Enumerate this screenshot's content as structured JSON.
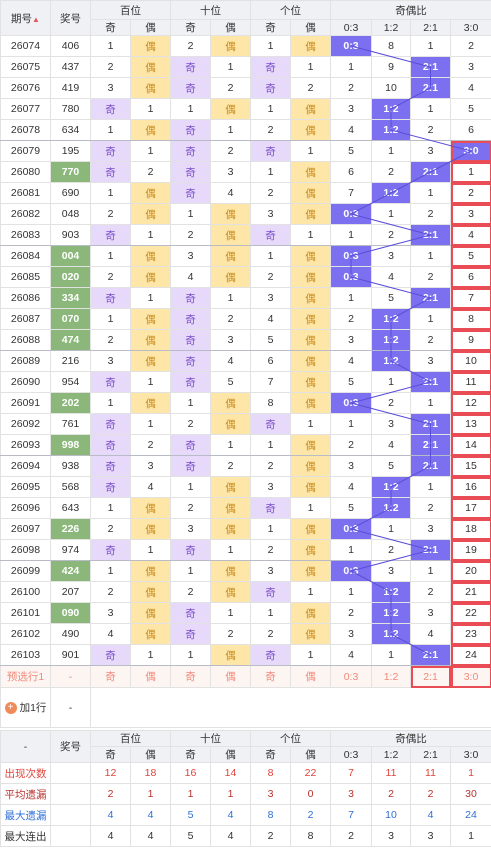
{
  "header": {
    "period": "期号",
    "number": "奖号",
    "groups": [
      "百位",
      "十位",
      "个位",
      "奇偶比"
    ],
    "sub": [
      "奇",
      "偶",
      "奇",
      "偶",
      "奇",
      "偶",
      "0:3",
      "1:2",
      "2:1",
      "3:0"
    ]
  },
  "rows": [
    {
      "period": 26074,
      "number": "406",
      "cells": [
        1,
        "偶",
        2,
        "偶",
        1,
        "偶",
        "0:3",
        8,
        1,
        2
      ]
    },
    {
      "period": 26075,
      "number": "437",
      "cells": [
        2,
        "偶",
        "奇",
        1,
        "奇",
        1,
        1,
        9,
        "2:1",
        3
      ]
    },
    {
      "period": 26076,
      "number": "419",
      "cells": [
        3,
        "偶",
        "奇",
        2,
        "奇",
        2,
        2,
        10,
        "2:1",
        4
      ]
    },
    {
      "period": 26077,
      "number": "780",
      "cells": [
        "奇",
        1,
        1,
        "偶",
        1,
        "偶",
        3,
        "1:2",
        1,
        5
      ]
    },
    {
      "period": 26078,
      "number": "634",
      "cells": [
        1,
        "偶",
        "奇",
        1,
        2,
        "偶",
        4,
        "1:2",
        2,
        6
      ]
    },
    {
      "period": 26079,
      "number": "195",
      "cells": [
        "奇",
        1,
        "奇",
        2,
        "奇",
        1,
        5,
        1,
        3,
        "3:0"
      ]
    },
    {
      "period": 26080,
      "number": "770",
      "cells": [
        "奇",
        2,
        "奇",
        3,
        1,
        "偶",
        6,
        2,
        "2:1",
        1
      ]
    },
    {
      "period": 26081,
      "number": "690",
      "cells": [
        1,
        "偶",
        "奇",
        4,
        2,
        "偶",
        7,
        "1:2",
        1,
        2
      ]
    },
    {
      "period": 26082,
      "number": "048",
      "cells": [
        2,
        "偶",
        1,
        "偶",
        3,
        "偶",
        "0:3",
        1,
        2,
        3
      ]
    },
    {
      "period": 26083,
      "number": "903",
      "cells": [
        "奇",
        1,
        2,
        "偶",
        "奇",
        1,
        1,
        2,
        "2:1",
        4
      ]
    },
    {
      "period": 26084,
      "number": "004",
      "cells": [
        1,
        "偶",
        3,
        "偶",
        1,
        "偶",
        "0:3",
        3,
        1,
        5
      ]
    },
    {
      "period": 26085,
      "number": "020",
      "cells": [
        2,
        "偶",
        4,
        "偶",
        2,
        "偶",
        "0:3",
        4,
        2,
        6
      ]
    },
    {
      "period": 26086,
      "number": "334",
      "cells": [
        "奇",
        1,
        "奇",
        1,
        3,
        "偶",
        1,
        5,
        "2:1",
        7
      ]
    },
    {
      "period": 26087,
      "number": "070",
      "cells": [
        1,
        "偶",
        "奇",
        2,
        4,
        "偶",
        2,
        "1:2",
        1,
        8
      ]
    },
    {
      "period": 26088,
      "number": "474",
      "cells": [
        2,
        "偶",
        "奇",
        3,
        5,
        "偶",
        3,
        "1:2",
        2,
        9
      ]
    },
    {
      "period": 26089,
      "number": "216",
      "cells": [
        3,
        "偶",
        "奇",
        4,
        6,
        "偶",
        4,
        "1:2",
        3,
        10
      ]
    },
    {
      "period": 26090,
      "number": "954",
      "cells": [
        "奇",
        1,
        "奇",
        5,
        7,
        "偶",
        5,
        1,
        "2:1",
        11
      ]
    },
    {
      "period": 26091,
      "number": "202",
      "cells": [
        1,
        "偶",
        1,
        "偶",
        8,
        "偶",
        "0:3",
        2,
        1,
        12
      ]
    },
    {
      "period": 26092,
      "number": "761",
      "cells": [
        "奇",
        1,
        2,
        "偶",
        "奇",
        1,
        1,
        3,
        "2:1",
        13
      ]
    },
    {
      "period": 26093,
      "number": "998",
      "cells": [
        "奇",
        2,
        "奇",
        1,
        1,
        "偶",
        2,
        4,
        "2:1",
        14
      ]
    },
    {
      "period": 26094,
      "number": "938",
      "cells": [
        "奇",
        3,
        "奇",
        2,
        2,
        "偶",
        3,
        5,
        "2:1",
        15
      ]
    },
    {
      "period": 26095,
      "number": "568",
      "cells": [
        "奇",
        4,
        1,
        "偶",
        3,
        "偶",
        4,
        "1:2",
        1,
        16
      ]
    },
    {
      "period": 26096,
      "number": "643",
      "cells": [
        1,
        "偶",
        2,
        "偶",
        "奇",
        1,
        5,
        "1:2",
        2,
        17
      ]
    },
    {
      "period": 26097,
      "number": "226",
      "cells": [
        2,
        "偶",
        3,
        "偶",
        1,
        "偶",
        "0:3",
        1,
        3,
        18
      ]
    },
    {
      "period": 26098,
      "number": "974",
      "cells": [
        "奇",
        1,
        "奇",
        1,
        2,
        "偶",
        1,
        2,
        "2:1",
        19
      ]
    },
    {
      "period": 26099,
      "number": "424",
      "cells": [
        1,
        "偶",
        1,
        "偶",
        3,
        "偶",
        "0:3",
        3,
        1,
        20
      ]
    },
    {
      "period": 26100,
      "number": "207",
      "cells": [
        2,
        "偶",
        2,
        "偶",
        "奇",
        1,
        1,
        "1:2",
        2,
        21
      ]
    },
    {
      "period": 26101,
      "number": "090",
      "cells": [
        3,
        "偶",
        "奇",
        1,
        1,
        "偶",
        2,
        "1:2",
        3,
        22
      ]
    },
    {
      "period": 26102,
      "number": "490",
      "cells": [
        4,
        "偶",
        "奇",
        2,
        2,
        "偶",
        3,
        "1:2",
        4,
        23
      ]
    },
    {
      "period": 26103,
      "number": "901",
      "cells": [
        "奇",
        1,
        1,
        "偶",
        "奇",
        1,
        4,
        1,
        "2:1",
        24
      ]
    }
  ],
  "preselect": {
    "label": "预选行1",
    "number": "-",
    "cells": [
      "奇",
      "偶",
      "奇",
      "偶",
      "奇",
      "偶",
      "0:3",
      "1:2",
      "2:1",
      "3:0"
    ]
  },
  "add": {
    "label": "加1行",
    "number": "-"
  },
  "footer": {
    "corner": "-"
  },
  "stats": [
    {
      "label": "出现次数",
      "values": [
        12,
        18,
        16,
        14,
        8,
        22,
        7,
        11,
        11,
        1
      ]
    },
    {
      "label": "平均遗漏",
      "values": [
        2,
        1,
        1,
        1,
        3,
        0,
        3,
        2,
        2,
        30
      ]
    },
    {
      "label": "最大遗漏",
      "values": [
        4,
        4,
        5,
        4,
        8,
        2,
        7,
        10,
        4,
        24
      ]
    },
    {
      "label": "最大连出",
      "values": [
        4,
        4,
        5,
        4,
        2,
        8,
        2,
        3,
        3,
        1
      ]
    }
  ]
}
